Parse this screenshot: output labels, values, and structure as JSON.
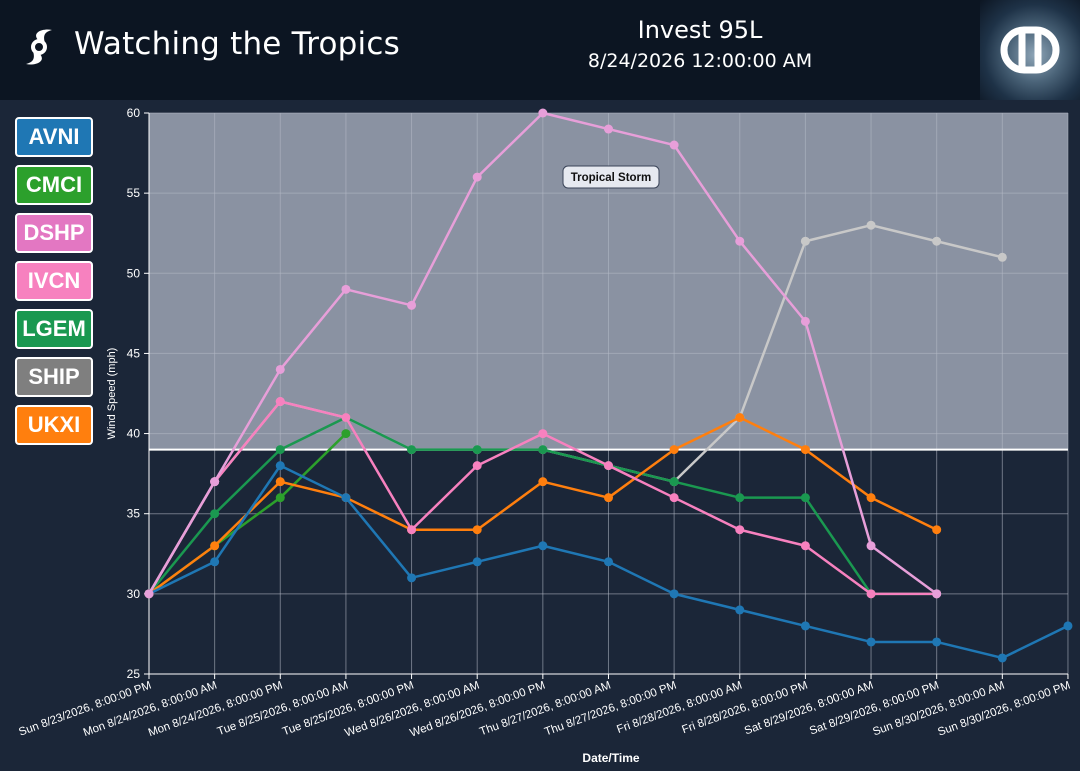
{
  "header": {
    "title": "Watching the Tropics",
    "storm_name": "Invest 95L",
    "storm_time": "8/24/2026 12:00:00 AM"
  },
  "legend": [
    {
      "label": "AVNI",
      "color": "#1f77b4"
    },
    {
      "label": "CMCI",
      "color": "#2ca02c"
    },
    {
      "label": "DSHP",
      "color": "#e377c2"
    },
    {
      "label": "IVCN",
      "color": "#f781bf"
    },
    {
      "label": "LGEM",
      "color": "#1a9850"
    },
    {
      "label": "SHIP",
      "color": "#7f7f7f"
    },
    {
      "label": "UKXI",
      "color": "#ff7f0e"
    }
  ],
  "chart_data": {
    "type": "line",
    "xlabel": "Date/Time",
    "ylabel": "Wind Speed (mph)",
    "ylim": [
      25,
      60
    ],
    "yticks": [
      25,
      30,
      35,
      40,
      45,
      50,
      55,
      60
    ],
    "grid": true,
    "threshold": {
      "value": 39,
      "label": "Tropical Storm"
    },
    "categories": [
      "Sun 8/23/2026, 8:00:00 PM",
      "Mon 8/24/2026, 8:00:00 AM",
      "Mon 8/24/2026, 8:00:00 PM",
      "Tue 8/25/2026, 8:00:00 AM",
      "Tue 8/25/2026, 8:00:00 PM",
      "Wed 8/26/2026, 8:00:00 AM",
      "Wed 8/26/2026, 8:00:00 PM",
      "Thu 8/27/2026, 8:00:00 AM",
      "Thu 8/27/2026, 8:00:00 PM",
      "Fri 8/28/2026, 8:00:00 AM",
      "Fri 8/28/2026, 8:00:00 PM",
      "Sat 8/29/2026, 8:00:00 AM",
      "Sat 8/29/2026, 8:00:00 PM",
      "Sun 8/30/2026, 8:00:00 AM",
      "Sun 8/30/2026, 8:00:00 PM"
    ],
    "series": [
      {
        "name": "SHIP",
        "color": "#c8c8c8",
        "values": [
          30,
          37,
          42,
          41,
          39,
          39,
          39,
          38,
          37,
          41,
          52,
          53,
          52,
          51,
          null
        ]
      },
      {
        "name": "LGEM",
        "color": "#1a9850",
        "values": [
          30,
          35,
          39,
          41,
          39,
          39,
          39,
          38,
          37,
          36,
          36,
          30,
          30,
          null,
          null
        ]
      },
      {
        "name": "CMCI",
        "color": "#2ca02c",
        "values": [
          30,
          33,
          36,
          40,
          null,
          null,
          null,
          null,
          null,
          null,
          null,
          null,
          null,
          null,
          null
        ]
      },
      {
        "name": "UKXI",
        "color": "#ff7f0e",
        "values": [
          30,
          33,
          37,
          36,
          34,
          34,
          37,
          36,
          39,
          41,
          39,
          36,
          34,
          null,
          null
        ]
      },
      {
        "name": "AVNI",
        "color": "#1f77b4",
        "values": [
          30,
          32,
          38,
          36,
          31,
          32,
          33,
          32,
          30,
          29,
          28,
          27,
          27,
          26,
          28
        ]
      },
      {
        "name": "IVCN",
        "color": "#f781bf",
        "values": [
          30,
          37,
          42,
          41,
          34,
          38,
          40,
          38,
          36,
          34,
          33,
          30,
          30,
          null,
          null
        ]
      },
      {
        "name": "DSHP",
        "color": "#e79fd9",
        "values": [
          30,
          37,
          44,
          49,
          48,
          56,
          60,
          59,
          58,
          52,
          47,
          33,
          30,
          null,
          null
        ]
      }
    ]
  }
}
